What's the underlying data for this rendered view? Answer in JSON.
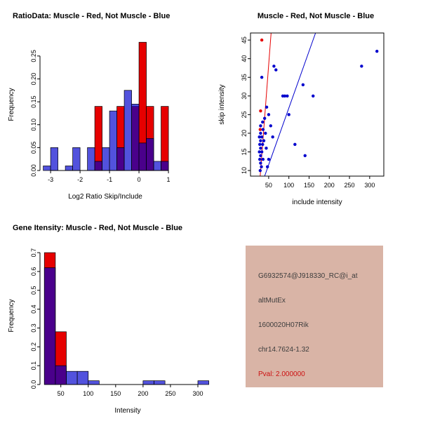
{
  "page": {
    "background": "#ffffff"
  },
  "chart_data": [
    {
      "type": "bar",
      "panel": "top-left",
      "title": "RatioData: Muscle - Red, Not Muscle - Blue",
      "xlabel": "Log2 Ratio Skip/Include",
      "ylabel": "Frequency",
      "xlim": [
        -3.36,
        1.07
      ],
      "ylim": [
        0,
        0.288
      ],
      "xticks": [
        -3,
        -2,
        -1,
        0,
        1
      ],
      "yticks": [
        "0.00",
        "0.05",
        "0.10",
        "0.15",
        "0.20",
        "0.25"
      ],
      "bin_width": 0.25,
      "bin_starts": [
        -3.25,
        -3,
        -2.75,
        -2.5,
        -2.25,
        -2,
        -1.75,
        -1.5,
        -1.25,
        -1,
        -0.75,
        -0.5,
        -0.25,
        0,
        0.25,
        0.5,
        0.75
      ],
      "series": [
        {
          "name": "Muscle",
          "color": "#e60000",
          "opacity": 1,
          "values": [
            0,
            0,
            0,
            0,
            0,
            0,
            0,
            0.14,
            0,
            0,
            0.14,
            0,
            0.14,
            0.28,
            0.14,
            0,
            0.14
          ]
        },
        {
          "name": "Not Muscle",
          "color": "#0000cd",
          "opacity": 0.68,
          "values": [
            0.01,
            0.05,
            0,
            0.01,
            0.05,
            0,
            0.05,
            0.02,
            0.05,
            0.13,
            0.05,
            0.175,
            0.145,
            0.06,
            0.07,
            0.02,
            0.02
          ]
        }
      ]
    },
    {
      "type": "scatter",
      "panel": "top-right",
      "title": "Muscle - Red, Not Muscle - Blue",
      "xlabel": "include intensity",
      "ylabel": "skip intensity",
      "xlim": [
        5,
        335
      ],
      "ylim": [
        8.5,
        46.9
      ],
      "xticks": [
        50,
        100,
        150,
        200,
        250,
        300
      ],
      "yticks": [
        10,
        15,
        20,
        25,
        30,
        35,
        40,
        45
      ],
      "series": [
        {
          "name": "Not Muscle",
          "color": "#0000cd",
          "points": [
            [
              33,
              35
            ],
            [
              63,
              38
            ],
            [
              68,
              37
            ],
            [
              85,
              30
            ],
            [
              90,
              30
            ],
            [
              96,
              30
            ],
            [
              135,
              33
            ],
            [
              318,
              42
            ],
            [
              280,
              38
            ],
            [
              100,
              25
            ],
            [
              140,
              14
            ],
            [
              115,
              17
            ],
            [
              160,
              30
            ],
            [
              45,
              27
            ],
            [
              50,
              25
            ],
            [
              40,
              24
            ],
            [
              35,
              23
            ],
            [
              30,
              22
            ],
            [
              36,
              21
            ],
            [
              42,
              20
            ],
            [
              30,
              20
            ],
            [
              27,
              19
            ],
            [
              33,
              19
            ],
            [
              38,
              18
            ],
            [
              30,
              18
            ],
            [
              28,
              17
            ],
            [
              35,
              17
            ],
            [
              44,
              16
            ],
            [
              30,
              16
            ],
            [
              27,
              15
            ],
            [
              33,
              15
            ],
            [
              30,
              14
            ],
            [
              28,
              13
            ],
            [
              36,
              13
            ],
            [
              30,
              12
            ],
            [
              32,
              11
            ],
            [
              29,
              10
            ],
            [
              55,
              22
            ],
            [
              60,
              19
            ],
            [
              50,
              13
            ],
            [
              47,
              11
            ]
          ]
        },
        {
          "name": "Muscle",
          "color": "#e60000",
          "points": [
            [
              33,
              45
            ],
            [
              30,
              26
            ],
            [
              29,
              21
            ]
          ]
        }
      ],
      "lines": [
        {
          "name": "muscle-fit-line",
          "color": "#e60000",
          "x1": 29,
          "y1": 8.5,
          "x2": 56,
          "y2": 46.9
        },
        {
          "name": "notmuscle-fit-line",
          "color": "#0000cd",
          "x1": 40,
          "y1": 8.5,
          "x2": 166,
          "y2": 46.9
        }
      ]
    },
    {
      "type": "bar",
      "panel": "bottom-left",
      "title": "Gene Itensity: Muscle - Red, Not Muscle - Blue",
      "xlabel": "Intensity",
      "ylabel": "Frequency",
      "xlim": [
        12,
        332
      ],
      "ylim": [
        0,
        0.73
      ],
      "xticks": [
        50,
        100,
        150,
        200,
        250,
        300
      ],
      "yticks": [
        "0.0",
        "0.1",
        "0.2",
        "0.3",
        "0.4",
        "0.5",
        "0.6",
        "0.7"
      ],
      "bin_width": 20,
      "bin_starts": [
        20,
        40,
        60,
        80,
        100,
        120,
        140,
        160,
        180,
        200,
        220,
        240,
        260,
        280,
        300
      ],
      "series": [
        {
          "name": "Muscle",
          "color": "#e60000",
          "opacity": 1,
          "values": [
            0.7,
            0.28,
            0,
            0,
            0,
            0,
            0,
            0,
            0,
            0,
            0,
            0,
            0,
            0,
            0
          ]
        },
        {
          "name": "Not Muscle",
          "color": "#0000cd",
          "opacity": 0.68,
          "values": [
            0.62,
            0.1,
            0.07,
            0.07,
            0.02,
            0,
            0,
            0,
            0,
            0.02,
            0.02,
            0,
            0,
            0,
            0.02
          ]
        }
      ]
    }
  ],
  "info_box": {
    "bg": "#d9b4a6",
    "lines": [
      "G6932574@J918330_RC@i_at",
      "altMutEx",
      "1600020H07Rik",
      "chr14.7624-1.32"
    ],
    "pval": "Pval: 2.000000",
    "pval_color": "#cc1111"
  }
}
